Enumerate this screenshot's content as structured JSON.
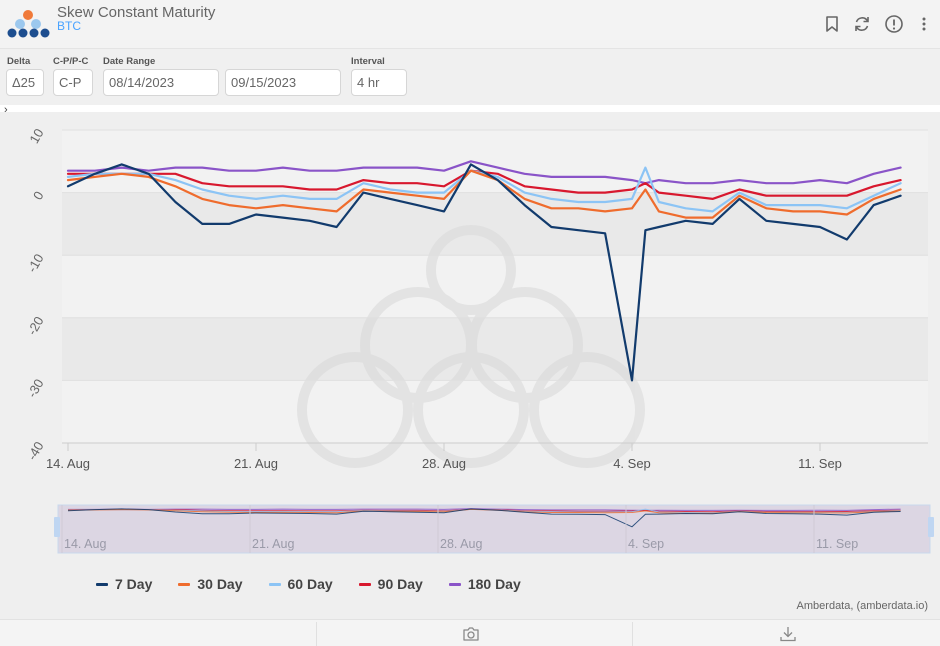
{
  "header": {
    "title": "Skew Constant Maturity",
    "subtitle": "BTC",
    "icons": [
      "bookmark-icon",
      "refresh-icon",
      "info-icon",
      "more-vertical-icon"
    ]
  },
  "controls": {
    "delta": {
      "label": "Delta",
      "value": "Δ25"
    },
    "cp": {
      "label": "C-P/P-C",
      "value": "C-P"
    },
    "date_range": {
      "label": "Date Range",
      "start": "08/14/2023",
      "end": "09/15/2023"
    },
    "interval": {
      "label": "Interval",
      "value": "4 hr"
    }
  },
  "credits": "Amberdata, (amberdata.io)",
  "footer": {
    "icons": [
      "camera-icon",
      "download-icon"
    ]
  },
  "colors": {
    "7 Day": "#123b6d",
    "30 Day": "#ef6c2d",
    "60 Day": "#8cc4f5",
    "90 Day": "#d8182e",
    "180 Day": "#8a54c8"
  },
  "chart_data": {
    "type": "line",
    "title": "",
    "xlabel": "",
    "ylabel": "",
    "ylim": [
      -40,
      10
    ],
    "yticks": [
      10,
      0,
      -10,
      -20,
      -30,
      -40
    ],
    "y_tick_labels": [
      "10",
      "0",
      "-10",
      "-20",
      "-30",
      "-40"
    ],
    "xlim": [
      "2023-08-14",
      "2023-09-14"
    ],
    "x_tick_labels": [
      "14. Aug",
      "21. Aug",
      "28. Aug",
      "4. Sep",
      "11. Sep"
    ],
    "x_tick_dates": [
      "2023-08-14",
      "2023-08-21",
      "2023-08-28",
      "2023-09-04",
      "2023-09-11"
    ],
    "grid": true,
    "legend": "bottom",
    "navigator_tick_labels": [
      "14. Aug",
      "21. Aug",
      "28. Aug",
      "4. Sep",
      "11. Sep"
    ],
    "series": [
      {
        "name": "7 Day",
        "points": [
          [
            "2023-08-14",
            1
          ],
          [
            "2023-08-15",
            3
          ],
          [
            "2023-08-16",
            4.5
          ],
          [
            "2023-08-17",
            3
          ],
          [
            "2023-08-18",
            -1.5
          ],
          [
            "2023-08-19",
            -5
          ],
          [
            "2023-08-20",
            -5
          ],
          [
            "2023-08-21",
            -3.5
          ],
          [
            "2023-08-22",
            -4
          ],
          [
            "2023-08-23",
            -4.5
          ],
          [
            "2023-08-24",
            -5.5
          ],
          [
            "2023-08-25",
            0
          ],
          [
            "2023-08-26",
            -1
          ],
          [
            "2023-08-27",
            -2
          ],
          [
            "2023-08-28",
            -3
          ],
          [
            "2023-08-29",
            4.5
          ],
          [
            "2023-08-30",
            2
          ],
          [
            "2023-08-31",
            -2
          ],
          [
            "2023-09-01",
            -5.5
          ],
          [
            "2023-09-02",
            -6
          ],
          [
            "2023-09-03",
            -6.5
          ],
          [
            "2023-09-04",
            -30
          ],
          [
            "2023-09-04T12:00",
            -6
          ],
          [
            "2023-09-05",
            -5.5
          ],
          [
            "2023-09-06",
            -4.5
          ],
          [
            "2023-09-07",
            -5
          ],
          [
            "2023-09-08",
            -1
          ],
          [
            "2023-09-09",
            -4.5
          ],
          [
            "2023-09-10",
            -5
          ],
          [
            "2023-09-11",
            -5.5
          ],
          [
            "2023-09-12",
            -7.5
          ],
          [
            "2023-09-13",
            -2
          ],
          [
            "2023-09-14",
            -0.5
          ]
        ]
      },
      {
        "name": "30 Day",
        "points": [
          [
            "2023-08-14",
            2
          ],
          [
            "2023-08-15",
            2.5
          ],
          [
            "2023-08-16",
            3
          ],
          [
            "2023-08-17",
            2.5
          ],
          [
            "2023-08-18",
            1
          ],
          [
            "2023-08-19",
            -1
          ],
          [
            "2023-08-20",
            -2
          ],
          [
            "2023-08-21",
            -2.5
          ],
          [
            "2023-08-22",
            -2
          ],
          [
            "2023-08-23",
            -2.5
          ],
          [
            "2023-08-24",
            -3
          ],
          [
            "2023-08-25",
            0.5
          ],
          [
            "2023-08-26",
            0
          ],
          [
            "2023-08-27",
            -0.5
          ],
          [
            "2023-08-28",
            -1
          ],
          [
            "2023-08-29",
            3.5
          ],
          [
            "2023-08-30",
            2
          ],
          [
            "2023-08-31",
            -1
          ],
          [
            "2023-09-01",
            -2.5
          ],
          [
            "2023-09-02",
            -2.5
          ],
          [
            "2023-09-03",
            -3
          ],
          [
            "2023-09-04",
            -2.5
          ],
          [
            "2023-09-04T12:00",
            0.5
          ],
          [
            "2023-09-05",
            -3
          ],
          [
            "2023-09-06",
            -4
          ],
          [
            "2023-09-07",
            -4
          ],
          [
            "2023-09-08",
            -0.5
          ],
          [
            "2023-09-09",
            -2.5
          ],
          [
            "2023-09-10",
            -3
          ],
          [
            "2023-09-11",
            -3
          ],
          [
            "2023-09-12",
            -3.5
          ],
          [
            "2023-09-13",
            -1
          ],
          [
            "2023-09-14",
            0.5
          ]
        ]
      },
      {
        "name": "60 Day",
        "points": [
          [
            "2023-08-14",
            2.5
          ],
          [
            "2023-08-15",
            3
          ],
          [
            "2023-08-16",
            3
          ],
          [
            "2023-08-17",
            3
          ],
          [
            "2023-08-18",
            2
          ],
          [
            "2023-08-19",
            0.5
          ],
          [
            "2023-08-20",
            -0.5
          ],
          [
            "2023-08-21",
            -1
          ],
          [
            "2023-08-22",
            -0.5
          ],
          [
            "2023-08-23",
            -1
          ],
          [
            "2023-08-24",
            -1
          ],
          [
            "2023-08-25",
            1.5
          ],
          [
            "2023-08-26",
            0.5
          ],
          [
            "2023-08-27",
            0
          ],
          [
            "2023-08-28",
            0
          ],
          [
            "2023-08-29",
            3.5
          ],
          [
            "2023-08-30",
            2.5
          ],
          [
            "2023-08-31",
            0
          ],
          [
            "2023-09-01",
            -1
          ],
          [
            "2023-09-02",
            -1.5
          ],
          [
            "2023-09-03",
            -1.5
          ],
          [
            "2023-09-04",
            -1
          ],
          [
            "2023-09-04T12:00",
            4
          ],
          [
            "2023-09-05",
            -1.5
          ],
          [
            "2023-09-06",
            -2.5
          ],
          [
            "2023-09-07",
            -3
          ],
          [
            "2023-09-08",
            0
          ],
          [
            "2023-09-09",
            -2
          ],
          [
            "2023-09-10",
            -2
          ],
          [
            "2023-09-11",
            -2
          ],
          [
            "2023-09-12",
            -2.5
          ],
          [
            "2023-09-13",
            -0.5
          ],
          [
            "2023-09-14",
            1.5
          ]
        ]
      },
      {
        "name": "90 Day",
        "points": [
          [
            "2023-08-14",
            3
          ],
          [
            "2023-08-15",
            3
          ],
          [
            "2023-08-16",
            3
          ],
          [
            "2023-08-17",
            3
          ],
          [
            "2023-08-18",
            3
          ],
          [
            "2023-08-19",
            1.5
          ],
          [
            "2023-08-20",
            1
          ],
          [
            "2023-08-21",
            1
          ],
          [
            "2023-08-22",
            1
          ],
          [
            "2023-08-23",
            0.5
          ],
          [
            "2023-08-24",
            0.5
          ],
          [
            "2023-08-25",
            2
          ],
          [
            "2023-08-26",
            1.5
          ],
          [
            "2023-08-27",
            1.5
          ],
          [
            "2023-08-28",
            1
          ],
          [
            "2023-08-29",
            3.5
          ],
          [
            "2023-08-30",
            3
          ],
          [
            "2023-08-31",
            1
          ],
          [
            "2023-09-01",
            0.5
          ],
          [
            "2023-09-02",
            0
          ],
          [
            "2023-09-03",
            0
          ],
          [
            "2023-09-04",
            0.5
          ],
          [
            "2023-09-04T12:00",
            1.5
          ],
          [
            "2023-09-05",
            0
          ],
          [
            "2023-09-06",
            -0.5
          ],
          [
            "2023-09-07",
            -1
          ],
          [
            "2023-09-08",
            0.5
          ],
          [
            "2023-09-09",
            -0.5
          ],
          [
            "2023-09-10",
            -0.5
          ],
          [
            "2023-09-11",
            -0.5
          ],
          [
            "2023-09-12",
            -0.5
          ],
          [
            "2023-09-13",
            1
          ],
          [
            "2023-09-14",
            2
          ]
        ]
      },
      {
        "name": "180 Day",
        "points": [
          [
            "2023-08-14",
            3.5
          ],
          [
            "2023-08-15",
            3.5
          ],
          [
            "2023-08-16",
            4
          ],
          [
            "2023-08-17",
            3.5
          ],
          [
            "2023-08-18",
            4
          ],
          [
            "2023-08-19",
            4
          ],
          [
            "2023-08-20",
            3.5
          ],
          [
            "2023-08-21",
            3.5
          ],
          [
            "2023-08-22",
            4
          ],
          [
            "2023-08-23",
            3.5
          ],
          [
            "2023-08-24",
            3.5
          ],
          [
            "2023-08-25",
            4
          ],
          [
            "2023-08-26",
            4
          ],
          [
            "2023-08-27",
            4
          ],
          [
            "2023-08-28",
            3.5
          ],
          [
            "2023-08-29",
            5
          ],
          [
            "2023-08-30",
            4
          ],
          [
            "2023-08-31",
            3
          ],
          [
            "2023-09-01",
            2.5
          ],
          [
            "2023-09-02",
            2.5
          ],
          [
            "2023-09-03",
            2.5
          ],
          [
            "2023-09-04",
            2
          ],
          [
            "2023-09-04T12:00",
            1.5
          ],
          [
            "2023-09-05",
            2
          ],
          [
            "2023-09-06",
            1.5
          ],
          [
            "2023-09-07",
            1.5
          ],
          [
            "2023-09-08",
            2
          ],
          [
            "2023-09-09",
            1.5
          ],
          [
            "2023-09-10",
            1.5
          ],
          [
            "2023-09-11",
            2
          ],
          [
            "2023-09-12",
            1.5
          ],
          [
            "2023-09-13",
            3
          ],
          [
            "2023-09-14",
            4
          ]
        ]
      }
    ]
  }
}
